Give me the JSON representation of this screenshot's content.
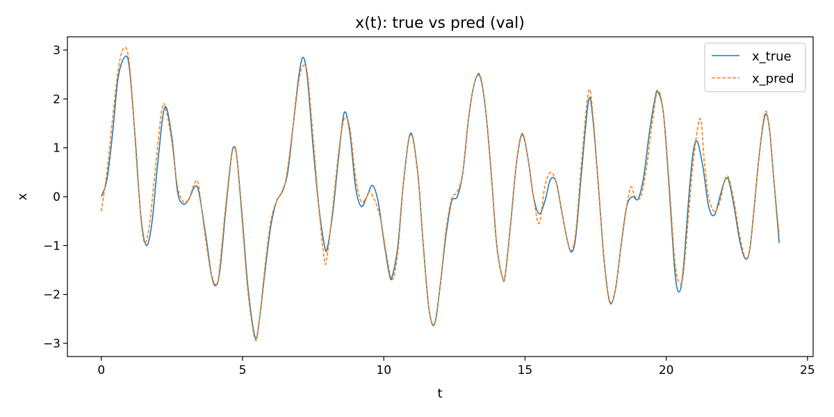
{
  "chart_data": {
    "type": "line",
    "title": "x(t): true vs pred (val)",
    "xlabel": "t",
    "ylabel": "x",
    "xlim": [
      -1.2,
      25.2
    ],
    "ylim": [
      -3.27,
      3.27
    ],
    "xticks": [
      0,
      5,
      10,
      15,
      20,
      25
    ],
    "yticks": [
      -3,
      -2,
      -1,
      0,
      1,
      2,
      3
    ],
    "xtick_labels": [
      "0",
      "5",
      "10",
      "15",
      "20",
      "25"
    ],
    "ytick_labels": [
      "−3",
      "−2",
      "−1",
      "0",
      "1",
      "2",
      "3"
    ],
    "grid": false,
    "legend": "top-right",
    "series": [
      {
        "name": "x_true",
        "color": "#1f77b4",
        "style": "solid",
        "points": [
          [
            0,
            0.0
          ],
          [
            0.2,
            0.35
          ],
          [
            0.4,
            1.3
          ],
          [
            0.6,
            2.45
          ],
          [
            0.85,
            2.87
          ],
          [
            1.0,
            2.6
          ],
          [
            1.2,
            1.2
          ],
          [
            1.4,
            -0.4
          ],
          [
            1.6,
            -1.0
          ],
          [
            1.8,
            -0.5
          ],
          [
            2.0,
            0.7
          ],
          [
            2.25,
            1.83
          ],
          [
            2.5,
            1.2
          ],
          [
            2.7,
            0.1
          ],
          [
            2.9,
            -0.15
          ],
          [
            3.1,
            -0.05
          ],
          [
            3.3,
            0.2
          ],
          [
            3.45,
            0.1
          ],
          [
            3.7,
            -0.8
          ],
          [
            3.9,
            -1.6
          ],
          [
            4.05,
            -1.82
          ],
          [
            4.2,
            -1.5
          ],
          [
            4.4,
            -0.3
          ],
          [
            4.6,
            0.8
          ],
          [
            4.7,
            1.02
          ],
          [
            4.8,
            0.8
          ],
          [
            5.0,
            -0.5
          ],
          [
            5.2,
            -1.9
          ],
          [
            5.45,
            -2.88
          ],
          [
            5.6,
            -2.5
          ],
          [
            5.8,
            -1.5
          ],
          [
            6.0,
            -0.6
          ],
          [
            6.2,
            -0.1
          ],
          [
            6.4,
            0.1
          ],
          [
            6.6,
            0.5
          ],
          [
            6.8,
            1.5
          ],
          [
            7.0,
            2.5
          ],
          [
            7.15,
            2.85
          ],
          [
            7.3,
            2.4
          ],
          [
            7.5,
            1.0
          ],
          [
            7.7,
            -0.2
          ],
          [
            7.9,
            -1.0
          ],
          [
            8.0,
            -1.05
          ],
          [
            8.2,
            -0.3
          ],
          [
            8.4,
            0.8
          ],
          [
            8.6,
            1.72
          ],
          [
            8.8,
            1.3
          ],
          [
            9.0,
            0.2
          ],
          [
            9.2,
            -0.2
          ],
          [
            9.4,
            0.0
          ],
          [
            9.6,
            0.23
          ],
          [
            9.8,
            -0.1
          ],
          [
            10.0,
            -0.9
          ],
          [
            10.2,
            -1.6
          ],
          [
            10.3,
            -1.63
          ],
          [
            10.5,
            -1.0
          ],
          [
            10.7,
            0.3
          ],
          [
            10.95,
            1.3
          ],
          [
            11.2,
            0.5
          ],
          [
            11.4,
            -1.0
          ],
          [
            11.6,
            -2.3
          ],
          [
            11.8,
            -2.6
          ],
          [
            12.0,
            -1.8
          ],
          [
            12.2,
            -0.8
          ],
          [
            12.4,
            -0.1
          ],
          [
            12.6,
            0.0
          ],
          [
            12.8,
            0.5
          ],
          [
            13.0,
            1.6
          ],
          [
            13.2,
            2.3
          ],
          [
            13.4,
            2.47
          ],
          [
            13.6,
            1.8
          ],
          [
            13.8,
            0.5
          ],
          [
            14.0,
            -1.0
          ],
          [
            14.2,
            -1.65
          ],
          [
            14.3,
            -1.6
          ],
          [
            14.5,
            -0.5
          ],
          [
            14.7,
            0.7
          ],
          [
            14.9,
            1.27
          ],
          [
            15.1,
            0.8
          ],
          [
            15.3,
            0.0
          ],
          [
            15.5,
            -0.35
          ],
          [
            15.7,
            -0.1
          ],
          [
            15.9,
            0.35
          ],
          [
            16.1,
            0.3
          ],
          [
            16.3,
            -0.3
          ],
          [
            16.5,
            -0.9
          ],
          [
            16.65,
            -1.13
          ],
          [
            16.8,
            -0.8
          ],
          [
            17.0,
            0.5
          ],
          [
            17.25,
            1.97
          ],
          [
            17.4,
            1.6
          ],
          [
            17.6,
            0.2
          ],
          [
            17.8,
            -1.3
          ],
          [
            18.0,
            -2.15
          ],
          [
            18.2,
            -1.9
          ],
          [
            18.4,
            -1.0
          ],
          [
            18.6,
            -0.2
          ],
          [
            18.8,
            0.0
          ],
          [
            19.0,
            -0.05
          ],
          [
            19.2,
            0.4
          ],
          [
            19.4,
            1.3
          ],
          [
            19.6,
            2.0
          ],
          [
            19.7,
            2.15
          ],
          [
            19.9,
            1.7
          ],
          [
            20.1,
            0.2
          ],
          [
            20.3,
            -1.5
          ],
          [
            20.45,
            -1.95
          ],
          [
            20.6,
            -1.5
          ],
          [
            20.8,
            0.0
          ],
          [
            20.95,
            0.9
          ],
          [
            21.1,
            1.13
          ],
          [
            21.3,
            0.6
          ],
          [
            21.5,
            -0.2
          ],
          [
            21.7,
            -0.38
          ],
          [
            21.9,
            0.0
          ],
          [
            22.05,
            0.3
          ],
          [
            22.2,
            0.35
          ],
          [
            22.4,
            -0.2
          ],
          [
            22.6,
            -0.9
          ],
          [
            22.8,
            -1.27
          ],
          [
            22.95,
            -1.1
          ],
          [
            23.1,
            -0.3
          ],
          [
            23.3,
            0.9
          ],
          [
            23.5,
            1.67
          ],
          [
            23.65,
            1.4
          ],
          [
            23.8,
            0.4
          ],
          [
            24.0,
            -0.95
          ]
        ]
      },
      {
        "name": "x_pred",
        "color": "#ff7f0e",
        "style": "dashed",
        "points": [
          [
            0,
            -0.3
          ],
          [
            0.2,
            0.5
          ],
          [
            0.4,
            1.6
          ],
          [
            0.6,
            2.6
          ],
          [
            0.78,
            3.03
          ],
          [
            0.95,
            2.9
          ],
          [
            1.1,
            2.0
          ],
          [
            1.3,
            0.3
          ],
          [
            1.5,
            -0.9
          ],
          [
            1.7,
            -0.6
          ],
          [
            1.9,
            0.5
          ],
          [
            2.15,
            1.8
          ],
          [
            2.3,
            1.75
          ],
          [
            2.5,
            1.1
          ],
          [
            2.7,
            0.2
          ],
          [
            2.9,
            -0.1
          ],
          [
            3.1,
            -0.05
          ],
          [
            3.25,
            0.2
          ],
          [
            3.4,
            0.33
          ],
          [
            3.5,
            0.0
          ],
          [
            3.7,
            -0.9
          ],
          [
            3.9,
            -1.6
          ],
          [
            4.1,
            -1.8
          ],
          [
            4.2,
            -1.4
          ],
          [
            4.4,
            -0.2
          ],
          [
            4.6,
            0.8
          ],
          [
            4.7,
            0.97
          ],
          [
            4.8,
            0.8
          ],
          [
            5.0,
            -0.6
          ],
          [
            5.2,
            -2.0
          ],
          [
            5.45,
            -2.93
          ],
          [
            5.6,
            -2.5
          ],
          [
            5.8,
            -1.4
          ],
          [
            6.0,
            -0.5
          ],
          [
            6.2,
            -0.1
          ],
          [
            6.45,
            0.15
          ],
          [
            6.6,
            0.6
          ],
          [
            6.8,
            1.5
          ],
          [
            7.0,
            2.4
          ],
          [
            7.15,
            2.68
          ],
          [
            7.3,
            2.5
          ],
          [
            7.5,
            1.2
          ],
          [
            7.7,
            -0.2
          ],
          [
            7.9,
            -1.3
          ],
          [
            8.0,
            -1.2
          ],
          [
            8.2,
            -0.2
          ],
          [
            8.4,
            0.9
          ],
          [
            8.6,
            1.6
          ],
          [
            8.8,
            1.4
          ],
          [
            9.0,
            0.4
          ],
          [
            9.2,
            -0.1
          ],
          [
            9.4,
            0.0
          ],
          [
            9.5,
            0.1
          ],
          [
            9.7,
            -0.1
          ],
          [
            9.9,
            -0.5
          ],
          [
            10.1,
            -1.2
          ],
          [
            10.3,
            -1.7
          ],
          [
            10.5,
            -1.1
          ],
          [
            10.7,
            0.3
          ],
          [
            10.95,
            1.27
          ],
          [
            11.2,
            0.5
          ],
          [
            11.4,
            -1.0
          ],
          [
            11.6,
            -2.3
          ],
          [
            11.8,
            -2.62
          ],
          [
            12.0,
            -1.8
          ],
          [
            12.2,
            -0.7
          ],
          [
            12.4,
            -0.05
          ],
          [
            12.6,
            0.1
          ],
          [
            12.8,
            0.5
          ],
          [
            13.0,
            1.6
          ],
          [
            13.2,
            2.3
          ],
          [
            13.4,
            2.5
          ],
          [
            13.6,
            1.8
          ],
          [
            13.8,
            0.5
          ],
          [
            14.0,
            -1.0
          ],
          [
            14.2,
            -1.65
          ],
          [
            14.3,
            -1.6
          ],
          [
            14.5,
            -0.5
          ],
          [
            14.7,
            0.7
          ],
          [
            14.9,
            1.3
          ],
          [
            15.1,
            0.8
          ],
          [
            15.3,
            0.0
          ],
          [
            15.5,
            -0.55
          ],
          [
            15.7,
            0.2
          ],
          [
            15.9,
            0.5
          ],
          [
            16.1,
            0.3
          ],
          [
            16.3,
            -0.3
          ],
          [
            16.5,
            -0.9
          ],
          [
            16.65,
            -1.1
          ],
          [
            16.8,
            -0.7
          ],
          [
            17.0,
            0.7
          ],
          [
            17.25,
            2.15
          ],
          [
            17.4,
            1.7
          ],
          [
            17.6,
            0.2
          ],
          [
            17.8,
            -1.3
          ],
          [
            18.0,
            -2.17
          ],
          [
            18.2,
            -1.9
          ],
          [
            18.4,
            -1.0
          ],
          [
            18.6,
            -0.2
          ],
          [
            18.75,
            0.2
          ],
          [
            18.9,
            0.0
          ],
          [
            19.1,
            0.0
          ],
          [
            19.3,
            0.6
          ],
          [
            19.5,
            1.5
          ],
          [
            19.7,
            2.17
          ],
          [
            19.9,
            1.7
          ],
          [
            20.1,
            0.3
          ],
          [
            20.3,
            -1.3
          ],
          [
            20.45,
            -1.75
          ],
          [
            20.6,
            -1.6
          ],
          [
            20.8,
            -0.3
          ],
          [
            20.95,
            0.7
          ],
          [
            21.2,
            1.6
          ],
          [
            21.35,
            0.7
          ],
          [
            21.5,
            0.0
          ],
          [
            21.7,
            -0.3
          ],
          [
            21.9,
            -0.1
          ],
          [
            22.05,
            0.3
          ],
          [
            22.2,
            0.4
          ],
          [
            22.4,
            -0.1
          ],
          [
            22.6,
            -0.8
          ],
          [
            22.8,
            -1.25
          ],
          [
            22.95,
            -1.1
          ],
          [
            23.1,
            -0.3
          ],
          [
            23.3,
            0.9
          ],
          [
            23.5,
            1.73
          ],
          [
            23.65,
            1.4
          ],
          [
            23.8,
            0.4
          ],
          [
            24.0,
            -0.8
          ]
        ]
      }
    ]
  }
}
